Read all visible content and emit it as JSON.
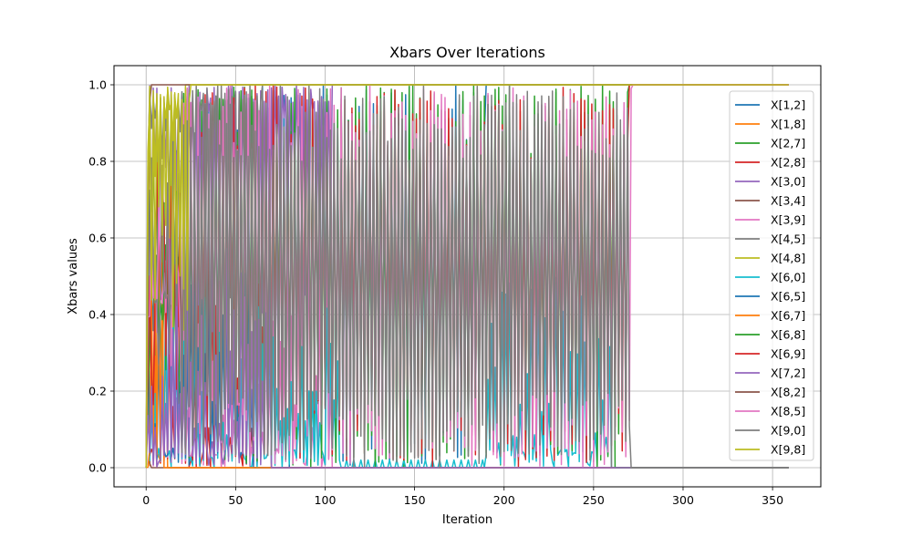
{
  "chart_data": {
    "type": "line",
    "title": "Xbars Over Iterations",
    "xlabel": "Iteration",
    "ylabel": "Xbars values",
    "xlim": [
      -17.95,
      376.95
    ],
    "ylim": [
      -0.05,
      1.05
    ],
    "xticks": [
      0,
      50,
      100,
      150,
      200,
      250,
      300,
      350
    ],
    "xtick_labels": [
      "0",
      "50",
      "100",
      "150",
      "200",
      "250",
      "300",
      "350"
    ],
    "yticks": [
      0.0,
      0.2,
      0.4,
      0.6,
      0.8,
      1.0
    ],
    "ytick_labels": [
      "0.0",
      "0.2",
      "0.4",
      "0.6",
      "0.8",
      "1.0"
    ],
    "grid": true,
    "legend_position": "upper right",
    "iterations": 359,
    "series": [
      {
        "name": "X[1,2]",
        "color": "#1f77b4",
        "final": 1.0,
        "converge": 190,
        "mode": "mid"
      },
      {
        "name": "X[1,8]",
        "color": "#ff7f0e",
        "final": 0.0,
        "converge": 12,
        "mode": "low"
      },
      {
        "name": "X[2,7]",
        "color": "#2ca02c",
        "final": 1.0,
        "converge": 270,
        "mode": "mid"
      },
      {
        "name": "X[2,8]",
        "color": "#d62728",
        "final": 0.0,
        "converge": 70,
        "mode": "low"
      },
      {
        "name": "X[3,0]",
        "color": "#9467bd",
        "final": 1.0,
        "converge": 104,
        "mode": "high"
      },
      {
        "name": "X[3,4]",
        "color": "#8c564b",
        "final": 0.0,
        "converge": 3,
        "mode": "low"
      },
      {
        "name": "X[3,9]",
        "color": "#e377c2",
        "final": 0.0,
        "converge": 104,
        "mode": "low"
      },
      {
        "name": "X[4,5]",
        "color": "#7f7f7f",
        "final": 1.0,
        "converge": 65,
        "mode": "high"
      },
      {
        "name": "X[4,8]",
        "color": "#bcbd22",
        "final": 1.0,
        "converge": 22,
        "mode": "high"
      },
      {
        "name": "X[6,0]",
        "color": "#17becf",
        "final": 0.0,
        "converge": 260,
        "mode": "lowsaw"
      },
      {
        "name": "X[6,5]",
        "color": "#1f77b4",
        "final": 0.0,
        "converge": 60,
        "mode": "low"
      },
      {
        "name": "X[6,7]",
        "color": "#ff7f0e",
        "final": 0.0,
        "converge": 10,
        "mode": "low"
      },
      {
        "name": "X[6,8]",
        "color": "#2ca02c",
        "final": 0.0,
        "converge": 262,
        "mode": "mid"
      },
      {
        "name": "X[6,9]",
        "color": "#d62728",
        "final": 1.0,
        "converge": 270,
        "mode": "mid"
      },
      {
        "name": "X[7,2]",
        "color": "#9467bd",
        "final": 0.0,
        "converge": 70,
        "mode": "low"
      },
      {
        "name": "X[8,2]",
        "color": "#8c564b",
        "final": 1.0,
        "converge": 3,
        "mode": "high"
      },
      {
        "name": "X[8,5]",
        "color": "#e377c2",
        "final": 1.0,
        "converge": 272,
        "mode": "mid"
      },
      {
        "name": "X[9,0]",
        "color": "#7f7f7f",
        "final": 0.0,
        "converge": 271,
        "mode": "mid"
      },
      {
        "name": "X[9,8]",
        "color": "#bcbd22",
        "final": 1.0,
        "converge": 25,
        "mode": "high"
      }
    ]
  }
}
